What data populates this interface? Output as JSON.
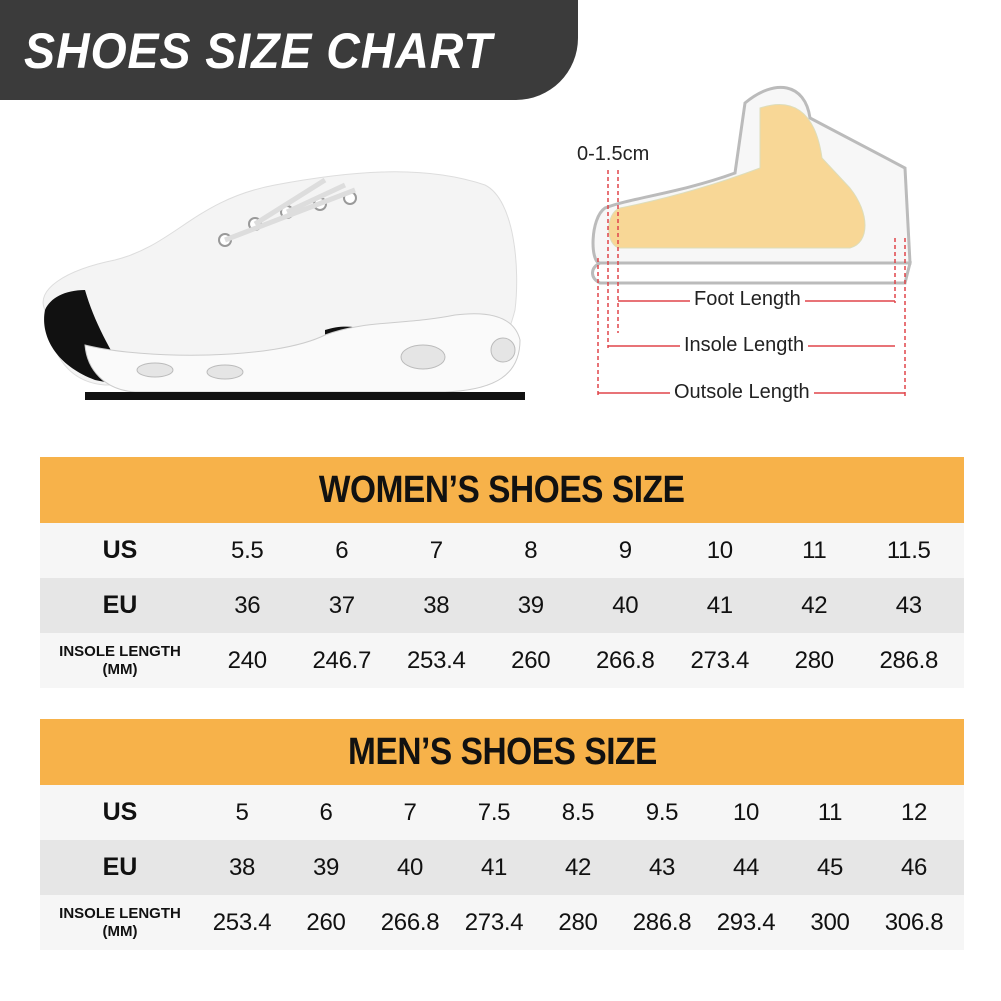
{
  "title": "SHOES SIZE CHART",
  "diagram": {
    "toe_gap": "0-1.5cm",
    "foot_length": "Foot Length",
    "insole_length": "Insole Length",
    "outsole_length": "Outsole Length",
    "measure_color": "#e0454a"
  },
  "colors": {
    "banner": "#3b3b3b",
    "table_header": "#f7b24a",
    "row_light": "#f6f6f6",
    "row_dark": "#e6e6e6"
  },
  "tables": [
    {
      "title": "WOMEN’S SHOES SIZE",
      "rows": [
        {
          "label": "US",
          "values": [
            "5.5",
            "6",
            "7",
            "8",
            "9",
            "10",
            "11",
            "11.5"
          ]
        },
        {
          "label": "EU",
          "values": [
            "36",
            "37",
            "38",
            "39",
            "40",
            "41",
            "42",
            "43"
          ]
        },
        {
          "label": "INSOLE LENGTH (MM)",
          "values": [
            "240",
            "246.7",
            "253.4",
            "260",
            "266.8",
            "273.4",
            "280",
            "286.8"
          ]
        }
      ]
    },
    {
      "title": "MEN’S SHOES SIZE",
      "rows": [
        {
          "label": "US",
          "values": [
            "5",
            "6",
            "7",
            "7.5",
            "8.5",
            "9.5",
            "10",
            "11",
            "12"
          ]
        },
        {
          "label": "EU",
          "values": [
            "38",
            "39",
            "40",
            "41",
            "42",
            "43",
            "44",
            "45",
            "46"
          ]
        },
        {
          "label": "INSOLE LENGTH (MM)",
          "values": [
            "253.4",
            "260",
            "266.8",
            "273.4",
            "280",
            "286.8",
            "293.4",
            "300",
            "306.8"
          ]
        }
      ]
    }
  ]
}
